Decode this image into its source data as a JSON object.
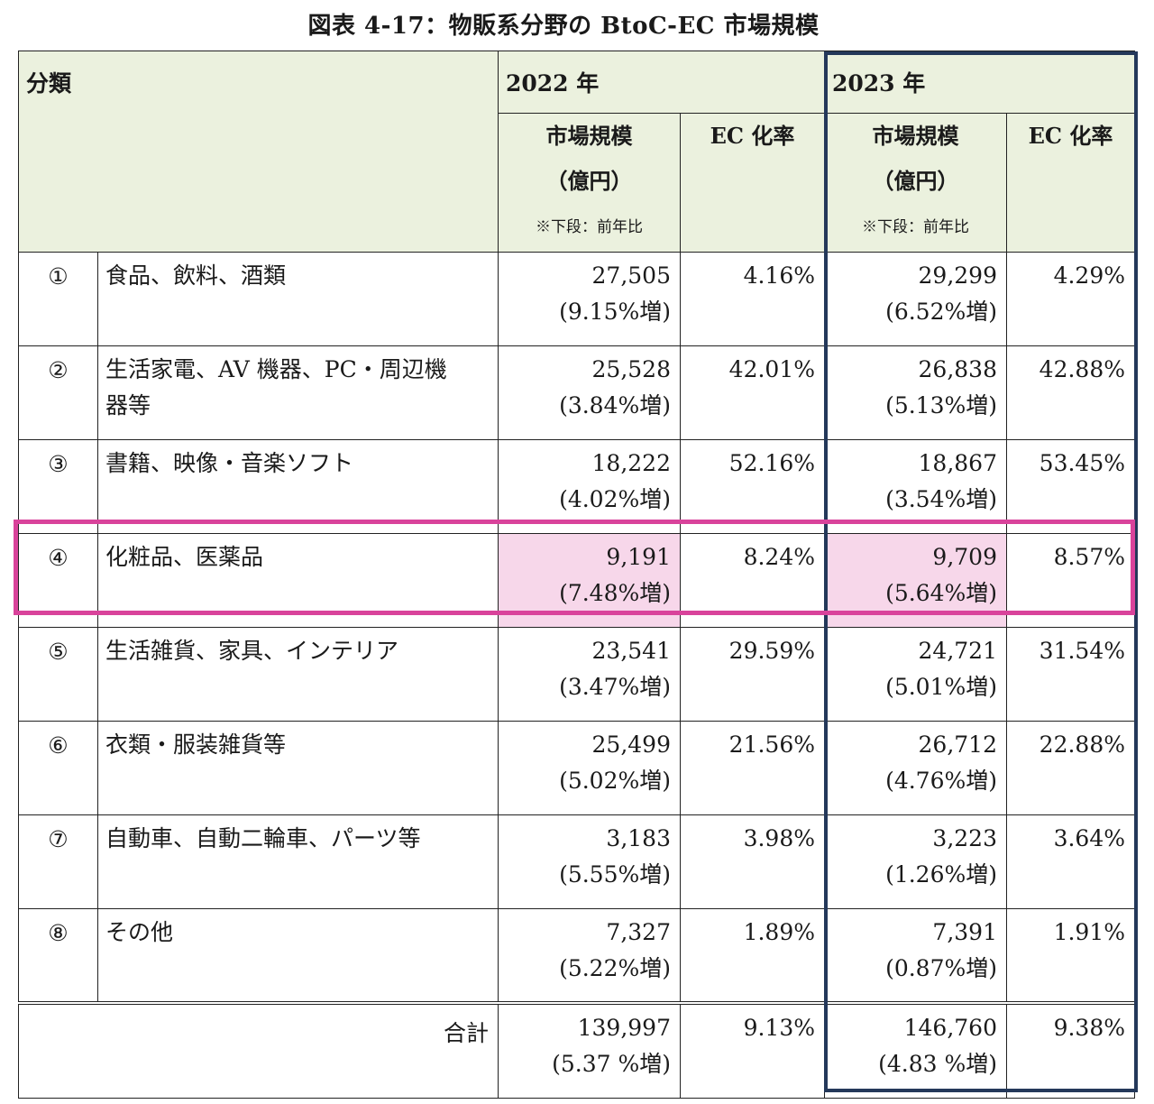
{
  "title": "図表 4-17：物販系分野の BtoC-EC 市場規模",
  "header": {
    "category": "分類",
    "year_2022": "2022 年",
    "year_2023": "2023 年",
    "market_size_line1": "市場規模",
    "market_size_line2": "（億円）",
    "market_size_note": "※下段：前年比",
    "ec_rate": "EC 化率"
  },
  "rows": [
    {
      "no": "①",
      "name1": "食品、飲料、酒類",
      "name2": "",
      "v2022": "27,505",
      "g2022": "(9.15%増)",
      "r2022": "4.16%",
      "v2023": "29,299",
      "g2023": "(6.52%増)",
      "r2023": "4.29%"
    },
    {
      "no": "②",
      "name1": "生活家電、AV 機器、PC・周辺機",
      "name2": "器等",
      "v2022": "25,528",
      "g2022": "(3.84%増)",
      "r2022": "42.01%",
      "v2023": "26,838",
      "g2023": "(5.13%増)",
      "r2023": "42.88%"
    },
    {
      "no": "③",
      "name1": "書籍、映像・音楽ソフト",
      "name2": "",
      "v2022": "18,222",
      "g2022": "(4.02%増)",
      "r2022": "52.16%",
      "v2023": "18,867",
      "g2023": "(3.54%増)",
      "r2023": "53.45%"
    },
    {
      "no": "④",
      "name1": "化粧品、医薬品",
      "name2": "",
      "v2022": "9,191",
      "g2022": "(7.48%増)",
      "r2022": "8.24%",
      "v2023": "9,709",
      "g2023": "(5.64%増)",
      "r2023": "8.57%"
    },
    {
      "no": "⑤",
      "name1": "生活雑貨、家具、インテリア",
      "name2": "",
      "v2022": "23,541",
      "g2022": "(3.47%増)",
      "r2022": "29.59%",
      "v2023": "24,721",
      "g2023": "(5.01%増)",
      "r2023": "31.54%"
    },
    {
      "no": "⑥",
      "name1": "衣類・服装雑貨等",
      "name2": "",
      "v2022": "25,499",
      "g2022": "(5.02%増)",
      "r2022": "21.56%",
      "v2023": "26,712",
      "g2023": "(4.76%増)",
      "r2023": "22.88%"
    },
    {
      "no": "⑦",
      "name1": "自動車、自動二輪車、パーツ等",
      "name2": "",
      "v2022": "3,183",
      "g2022": "(5.55%増)",
      "r2022": "3.98%",
      "v2023": "3,223",
      "g2023": "(1.26%増)",
      "r2023": "3.64%"
    },
    {
      "no": "⑧",
      "name1": "その他",
      "name2": "",
      "v2022": "7,327",
      "g2022": "(5.22%増)",
      "r2022": "1.89%",
      "v2023": "7,391",
      "g2023": "(0.87%増)",
      "r2023": "1.91%"
    }
  ],
  "total": {
    "label": "合計",
    "v2022": "139,997",
    "g2022": "(5.37 %増)",
    "r2022": "9.13%",
    "v2023": "146,760",
    "g2023": "(4.83 %増)",
    "r2023": "9.38%"
  },
  "colors": {
    "header_bg": "#ebf1de",
    "highlight_cell_bg": "#f7d7ea",
    "highlight_border": "#d9439b",
    "year2023_frame": "#24385a"
  }
}
